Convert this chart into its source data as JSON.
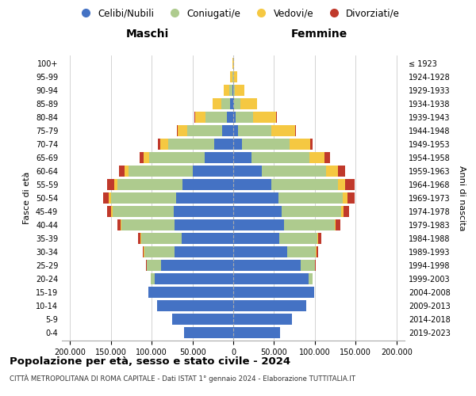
{
  "age_groups": [
    "0-4",
    "5-9",
    "10-14",
    "15-19",
    "20-24",
    "25-29",
    "30-34",
    "35-39",
    "40-44",
    "45-49",
    "50-54",
    "55-59",
    "60-64",
    "65-69",
    "70-74",
    "75-79",
    "80-84",
    "85-89",
    "90-94",
    "95-99",
    "100+"
  ],
  "birth_years": [
    "2019-2023",
    "2014-2018",
    "2009-2013",
    "2004-2008",
    "1999-2003",
    "1994-1998",
    "1989-1993",
    "1984-1988",
    "1979-1983",
    "1974-1978",
    "1969-1973",
    "1964-1968",
    "1959-1963",
    "1954-1958",
    "1949-1953",
    "1944-1948",
    "1939-1943",
    "1934-1938",
    "1929-1933",
    "1924-1928",
    "≤ 1923"
  ],
  "colors": {
    "celibi": "#4472C4",
    "coniugati": "#AECB8E",
    "vedovi": "#F5C842",
    "divorziati": "#C0392B"
  },
  "males": {
    "celibi": [
      60000,
      75000,
      93000,
      104000,
      96000,
      88000,
      72000,
      63000,
      72000,
      73000,
      70000,
      62000,
      50000,
      35000,
      23000,
      14000,
      8000,
      3500,
      1200,
      400,
      50
    ],
    "coniugati": [
      0,
      0,
      0,
      500,
      5000,
      18000,
      37000,
      50000,
      65000,
      75000,
      80000,
      80000,
      78000,
      68000,
      57000,
      42000,
      26000,
      11000,
      3500,
      900,
      100
    ],
    "vedovi": [
      0,
      0,
      0,
      0,
      100,
      300,
      500,
      700,
      1000,
      1500,
      2500,
      3800,
      5200,
      7000,
      9500,
      12000,
      13000,
      10500,
      6500,
      2800,
      600
    ],
    "divorziati": [
      0,
      0,
      0,
      0,
      300,
      1000,
      1800,
      2800,
      4000,
      5500,
      6500,
      8500,
      7000,
      5000,
      3000,
      1500,
      600,
      200,
      50,
      15,
      3
    ]
  },
  "females": {
    "celibi": [
      57000,
      72000,
      89000,
      99000,
      92000,
      83000,
      66000,
      56000,
      62000,
      59000,
      55000,
      47000,
      35000,
      22000,
      11000,
      5500,
      2500,
      800,
      200,
      60,
      8
    ],
    "coniugati": [
      0,
      0,
      0,
      500,
      5000,
      17000,
      35000,
      47000,
      62000,
      73000,
      79000,
      81000,
      79000,
      71000,
      58000,
      41000,
      22000,
      8000,
      2000,
      400,
      35
    ],
    "vedovi": [
      0,
      0,
      0,
      0,
      100,
      300,
      600,
      1000,
      1800,
      3200,
      5800,
      9500,
      14000,
      19000,
      25000,
      29000,
      28000,
      20000,
      11000,
      4500,
      900
    ],
    "divorziati": [
      0,
      0,
      0,
      0,
      400,
      1200,
      2200,
      3500,
      5000,
      7000,
      9000,
      11500,
      9500,
      6500,
      3500,
      1500,
      500,
      150,
      30,
      8,
      1
    ]
  },
  "xlim": 210000,
  "xticks": [
    -200000,
    -150000,
    -100000,
    -50000,
    0,
    50000,
    100000,
    150000,
    200000
  ],
  "xtick_labels": [
    "200.000",
    "150.000",
    "100.000",
    "50.000",
    "0",
    "50.000",
    "100.000",
    "150.000",
    "200.000"
  ],
  "title": "Popolazione per età, sesso e stato civile - 2024",
  "subtitle": "CITTÀ METROPOLITANA DI ROMA CAPITALE - Dati ISTAT 1° gennaio 2024 - Elaborazione TUTTITALIA.IT",
  "ylabel_left": "Fasce di età",
  "ylabel_right": "Anni di nascita",
  "label_maschi": "Maschi",
  "label_femmine": "Femmine",
  "legend_labels": [
    "Celibi/Nubili",
    "Coniugati/e",
    "Vedovi/e",
    "Divorziati/e"
  ],
  "background_color": "#ffffff",
  "grid_color": "#cccccc",
  "bar_height": 0.85
}
